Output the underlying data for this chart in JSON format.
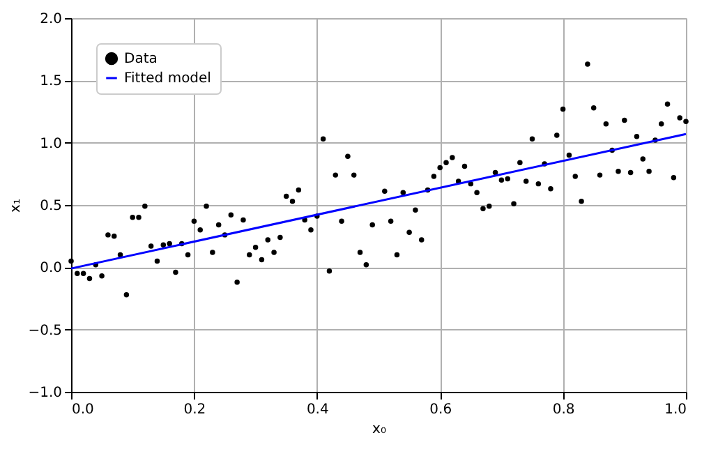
{
  "chart_data": {
    "type": "scatter",
    "xlabel": "x₀",
    "ylabel": "x₁",
    "xlim": [
      0,
      1.0
    ],
    "ylim": [
      -1.0,
      2.0
    ],
    "xticks": [
      {
        "value": 0,
        "label": "0.0"
      },
      0.2,
      0.4,
      0.6,
      0.8,
      {
        "value": 1,
        "label": "1.0"
      }
    ],
    "yticks": [
      {
        "value": -1,
        "label": "−1.0"
      },
      {
        "value": -0.5,
        "label": "−0.5"
      },
      {
        "value": 0,
        "label": "0.0"
      },
      0.5,
      {
        "value": 1,
        "label": "1.0"
      },
      1.5,
      {
        "value": 2,
        "label": "2.0"
      }
    ],
    "grid": true,
    "legend": "top left",
    "series": [
      {
        "name": "Data",
        "marker": "circle",
        "color": "#000000",
        "x": [
          0.0,
          0.01,
          0.02,
          0.03,
          0.04,
          0.05,
          0.06,
          0.07,
          0.08,
          0.09,
          0.1,
          0.11,
          0.12,
          0.13,
          0.14,
          0.15,
          0.16,
          0.17,
          0.18,
          0.19,
          0.2,
          0.21,
          0.22,
          0.23,
          0.24,
          0.25,
          0.26,
          0.27,
          0.28,
          0.29,
          0.3,
          0.31,
          0.32,
          0.33,
          0.34,
          0.35,
          0.36,
          0.37,
          0.38,
          0.39,
          0.4,
          0.41,
          0.42,
          0.43,
          0.44,
          0.45,
          0.46,
          0.47,
          0.48,
          0.49,
          0.51,
          0.52,
          0.53,
          0.54,
          0.55,
          0.56,
          0.57,
          0.58,
          0.59,
          0.6,
          0.61,
          0.62,
          0.63,
          0.64,
          0.65,
          0.66,
          0.67,
          0.68,
          0.69,
          0.7,
          0.71,
          0.72,
          0.73,
          0.74,
          0.75,
          0.76,
          0.77,
          0.78,
          0.79,
          0.8,
          0.81,
          0.82,
          0.83,
          0.84,
          0.85,
          0.86,
          0.87,
          0.88,
          0.89,
          0.9,
          0.91,
          0.92,
          0.93,
          0.94,
          0.95,
          0.96,
          0.97,
          0.98,
          0.99,
          1.0
        ],
        "values": [
          0.05,
          -0.05,
          -0.05,
          -0.09,
          0.02,
          -0.07,
          0.26,
          0.25,
          0.1,
          -0.22,
          0.4,
          0.4,
          0.49,
          0.17,
          0.05,
          0.18,
          0.19,
          -0.04,
          0.19,
          0.1,
          0.37,
          0.3,
          0.49,
          0.12,
          0.34,
          0.26,
          0.42,
          -0.12,
          0.38,
          0.1,
          0.16,
          0.06,
          0.22,
          0.12,
          0.24,
          0.57,
          0.53,
          0.62,
          0.38,
          0.3,
          0.41,
          1.03,
          -0.03,
          0.74,
          0.37,
          0.89,
          0.74,
          0.12,
          0.02,
          0.34,
          0.61,
          0.37,
          0.1,
          0.6,
          0.28,
          0.46,
          0.22,
          0.62,
          0.73,
          0.8,
          0.84,
          0.88,
          0.69,
          0.81,
          0.67,
          0.6,
          0.47,
          0.49,
          0.76,
          0.7,
          0.71,
          0.51,
          0.84,
          0.69,
          1.03,
          0.67,
          0.83,
          0.63,
          1.06,
          1.27,
          0.9,
          0.73,
          0.53,
          1.63,
          1.28,
          0.74,
          1.15,
          0.94,
          0.77,
          1.18,
          0.76,
          1.05,
          0.87,
          0.77,
          1.02,
          1.15,
          1.31,
          0.72,
          1.2,
          1.17
        ]
      },
      {
        "name": "Fitted model",
        "type": "line",
        "marker": "none",
        "line_style": "solid",
        "color": "#0000ff",
        "x": [
          0,
          1.0
        ],
        "values": [
          -0.01,
          1.07
        ]
      }
    ]
  }
}
